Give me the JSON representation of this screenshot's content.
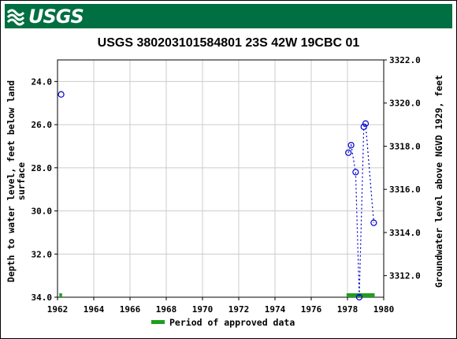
{
  "header": {
    "logo_text": "USGS"
  },
  "chart_data": {
    "type": "scatter",
    "title": "USGS 380203101584801 23S 42W 19CBC 01",
    "ylabel_left": [
      "Depth to water level, feet below land",
      "surface"
    ],
    "ylabel_right": "Groundwater level above NGVD 1929, feet",
    "xlim": [
      1962,
      1980
    ],
    "ylim_left": [
      34.0,
      23.0
    ],
    "ylim_right": [
      3311.0,
      3322.0
    ],
    "x_ticks": [
      "1962",
      "1964",
      "1966",
      "1968",
      "1970",
      "1972",
      "1974",
      "1976",
      "1978",
      "1980"
    ],
    "y_ticks_left": [
      "24.0",
      "26.0",
      "28.0",
      "30.0",
      "32.0",
      "34.0"
    ],
    "y_ticks_right": [
      "3312.0",
      "3314.0",
      "3316.0",
      "3318.0",
      "3320.0",
      "3322.0"
    ],
    "grid": true,
    "series": [
      {
        "marker": "open-circle",
        "color": "#0000cc",
        "points": [
          {
            "x": 1962.2,
            "y": 24.6
          },
          {
            "x": 1978.05,
            "y": 27.3
          },
          {
            "x": 1978.2,
            "y": 26.95
          },
          {
            "x": 1978.45,
            "y": 28.2
          },
          {
            "x": 1978.65,
            "y": 34.0
          },
          {
            "x": 1978.9,
            "y": 26.1
          },
          {
            "x": 1979.0,
            "y": 25.95
          },
          {
            "x": 1979.45,
            "y": 30.55
          }
        ],
        "dotted_line_from_index": 1
      }
    ],
    "approved_periods": [
      {
        "start": 1962.1,
        "end": 1962.25
      },
      {
        "start": 1977.95,
        "end": 1979.5
      }
    ],
    "approved_color": "#1f9e1f",
    "legend": {
      "label": "Period of approved data",
      "position": "bottom-center"
    }
  }
}
